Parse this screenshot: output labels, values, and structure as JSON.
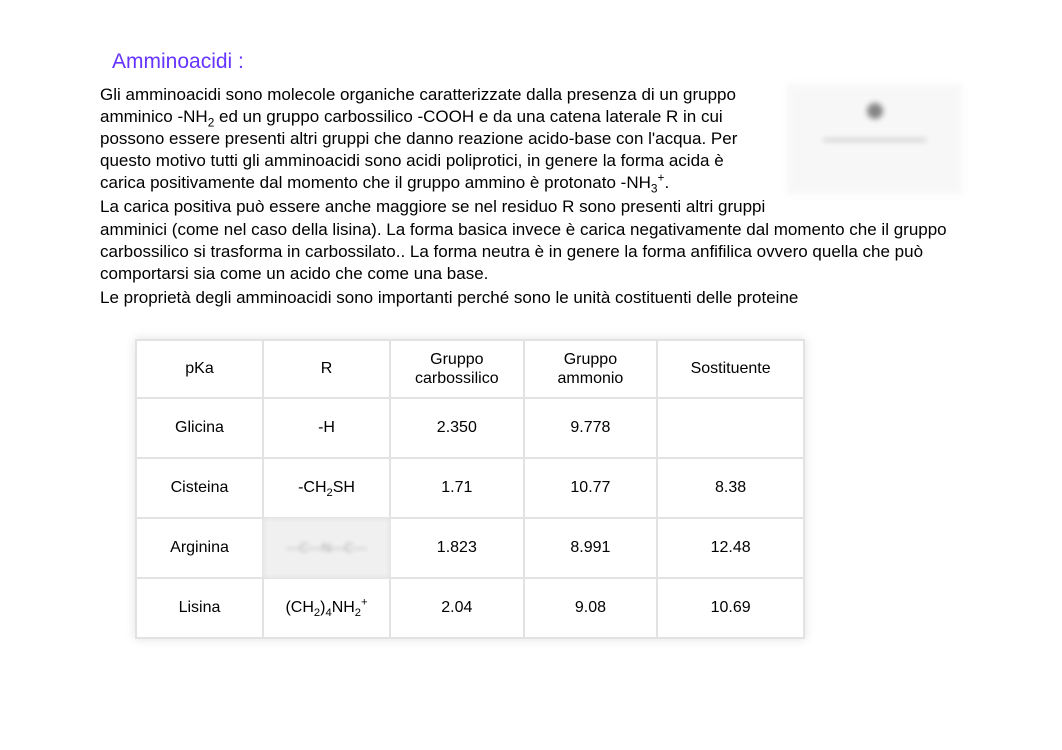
{
  "heading": "Amminoacidi :",
  "para1_pre": "Gli amminoacidi sono molecole organiche caratterizzate dalla presenza di un gruppo amminico -NH",
  "para1_sub1": "2",
  "para1_mid": " ed un gruppo carbossilico -COOH e da una catena laterale R in cui possono essere presenti altri gruppi che danno reazione acido-base con l'acqua. Per questo motivo tutti gli amminoacidi sono acidi poliprotici, in genere la forma acida è carica positivamente dal momento che il gruppo ammino è protonato -NH",
  "para1_sub2": "3",
  "para1_sup2": "+",
  "para1_end": ".",
  "para2": "La carica positiva può essere anche maggiore se nel residuo R sono presenti altri gruppi amminici (come nel caso della lisina). La forma basica invece è carica negativamente dal momento che il gruppo carbossilico si trasforma in carbossilato.. La forma neutra è in genere la forma anfifilica ovvero quella che può comportarsi sia come un acido che come una base.",
  "para3": "Le proprietà degli amminoacidi sono importanti perché sono le unità costituenti delle proteine",
  "table": {
    "headers": [
      "pKa",
      "R",
      "Gruppo carbossilico",
      "Gruppo ammonio",
      "Sostituente"
    ],
    "rows": [
      {
        "name": "Glicina",
        "r_html": "-H",
        "carb": "2.350",
        "amm": "9.778",
        "sost": ""
      },
      {
        "name": "Cisteina",
        "r_html": "-CH<sub>2</sub>SH",
        "carb": "1.71",
        "amm": "10.77",
        "sost": "8.38"
      },
      {
        "name": "Arginina",
        "r_html": "__arg__",
        "carb": "1.823",
        "amm": "8.991",
        "sost": "12.48"
      },
      {
        "name": "Lisina",
        "r_html": "(CH<sub>2</sub>)<sub>4</sub>NH<sub>2</sub><sup>+</sup>",
        "carb": "2.04",
        "amm": "9.08",
        "sost": "10.69"
      }
    ]
  },
  "colors": {
    "heading": "#6633ff",
    "text": "#000000",
    "bg": "#ffffff",
    "table_border": "#e2e2e2"
  }
}
